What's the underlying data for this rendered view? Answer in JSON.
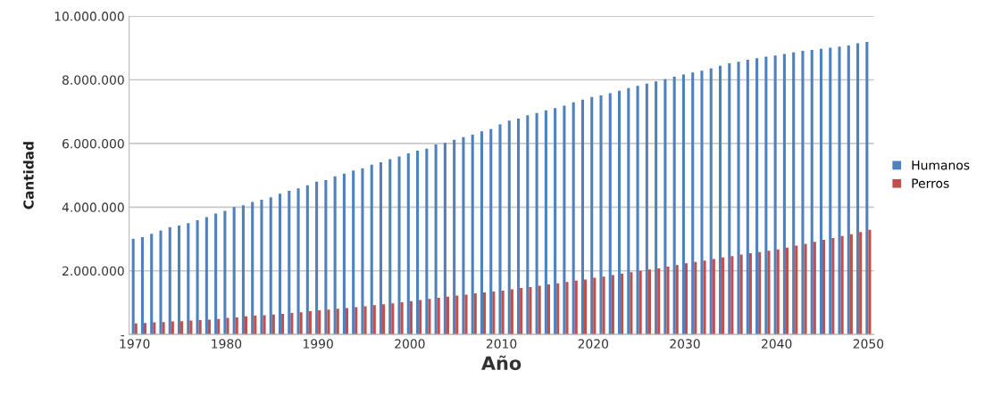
{
  "chart_data": {
    "type": "bar",
    "xlabel": "Año",
    "ylabel": "Cantidad",
    "categories": [
      "1970",
      null,
      null,
      null,
      null,
      null,
      null,
      null,
      null,
      null,
      "1980",
      null,
      null,
      null,
      null,
      null,
      null,
      null,
      null,
      null,
      "1990",
      null,
      null,
      null,
      null,
      null,
      null,
      null,
      null,
      null,
      "2000",
      null,
      null,
      null,
      null,
      null,
      null,
      null,
      null,
      null,
      "2010",
      null,
      null,
      null,
      null,
      null,
      null,
      null,
      null,
      null,
      "2020",
      null,
      null,
      null,
      null,
      null,
      null,
      null,
      null,
      null,
      "2030",
      null,
      null,
      null,
      null,
      null,
      null,
      null,
      null,
      null,
      "2040",
      null,
      null,
      null,
      null,
      null,
      null,
      null,
      null,
      null,
      "2050"
    ],
    "series": [
      {
        "name": "Humanos",
        "color": "#4f81bd",
        "values": [
          3010000,
          3060000,
          3160000,
          3270000,
          3370000,
          3420000,
          3500000,
          3590000,
          3690000,
          3800000,
          3880000,
          4000000,
          4060000,
          4160000,
          4230000,
          4310000,
          4420000,
          4510000,
          4590000,
          4690000,
          4800000,
          4850000,
          4970000,
          5050000,
          5150000,
          5220000,
          5330000,
          5410000,
          5510000,
          5590000,
          5690000,
          5770000,
          5840000,
          5970000,
          6020000,
          6120000,
          6200000,
          6280000,
          6380000,
          6450000,
          6600000,
          6720000,
          6780000,
          6890000,
          6960000,
          7040000,
          7110000,
          7190000,
          7290000,
          7380000,
          7460000,
          7510000,
          7580000,
          7660000,
          7740000,
          7810000,
          7880000,
          7950000,
          8020000,
          8100000,
          8170000,
          8230000,
          8290000,
          8360000,
          8440000,
          8520000,
          8570000,
          8630000,
          8680000,
          8730000,
          8760000,
          8810000,
          8860000,
          8910000,
          8940000,
          8970000,
          9010000,
          9040000,
          9080000,
          9150000,
          9190000
        ]
      },
      {
        "name": "Perros",
        "color": "#c0504d",
        "values": [
          350000,
          360000,
          380000,
          390000,
          410000,
          420000,
          440000,
          450000,
          470000,
          490000,
          520000,
          540000,
          570000,
          590000,
          610000,
          630000,
          650000,
          680000,
          700000,
          730000,
          760000,
          780000,
          810000,
          830000,
          860000,
          890000,
          920000,
          950000,
          980000,
          1010000,
          1050000,
          1080000,
          1120000,
          1150000,
          1190000,
          1220000,
          1250000,
          1290000,
          1320000,
          1350000,
          1380000,
          1420000,
          1460000,
          1490000,
          1530000,
          1570000,
          1610000,
          1650000,
          1690000,
          1730000,
          1780000,
          1820000,
          1870000,
          1910000,
          1960000,
          2000000,
          2040000,
          2080000,
          2130000,
          2180000,
          2240000,
          2280000,
          2320000,
          2370000,
          2420000,
          2460000,
          2510000,
          2550000,
          2590000,
          2630000,
          2670000,
          2730000,
          2790000,
          2850000,
          2910000,
          2970000,
          3030000,
          3090000,
          3150000,
          3220000,
          3290000
        ]
      }
    ],
    "ylim": [
      0,
      10000000
    ],
    "yticks": [
      {
        "value": 0,
        "label": "-"
      },
      {
        "value": 2000000,
        "label": "2.000.000"
      },
      {
        "value": 4000000,
        "label": "4.000.000"
      },
      {
        "value": 6000000,
        "label": "6.000.000"
      },
      {
        "value": 8000000,
        "label": "8.000.000"
      },
      {
        "value": 10000000,
        "label": "10.000.000"
      }
    ],
    "grid": "y",
    "legend": "right"
  }
}
